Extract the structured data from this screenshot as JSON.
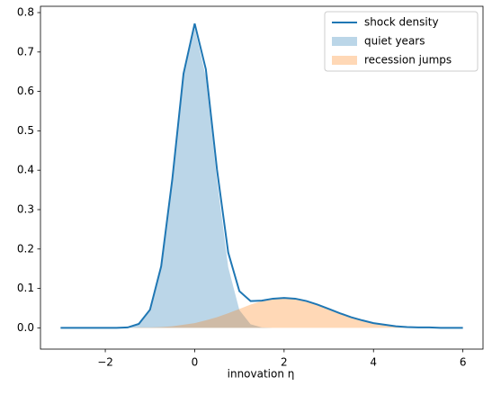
{
  "chart_data": {
    "type": "line",
    "xlabel": "innovation η",
    "x": [
      -3,
      -2.75,
      -2.5,
      -2.25,
      -2,
      -1.75,
      -1.5,
      -1.25,
      -1,
      -0.75,
      -0.5,
      -0.25,
      0,
      0.25,
      0.5,
      0.75,
      1,
      1.25,
      1.5,
      1.75,
      2,
      2.25,
      2.5,
      2.75,
      3,
      3.25,
      3.5,
      3.75,
      4,
      4.25,
      4.5,
      4.75,
      5,
      5.25,
      5.5,
      5.75,
      6
    ],
    "series": [
      {
        "name": "shock density",
        "kind": "line",
        "color": "#1f77b4",
        "values": [
          0,
          0,
          0,
          0,
          0,
          0,
          0.001,
          0.01,
          0.046,
          0.156,
          0.378,
          0.645,
          0.772,
          0.656,
          0.401,
          0.191,
          0.093,
          0.068,
          0.069,
          0.074,
          0.076,
          0.074,
          0.068,
          0.059,
          0.048,
          0.037,
          0.027,
          0.019,
          0.012,
          0.008,
          0.004,
          0.002,
          0.001,
          0.001,
          0,
          0,
          0
        ]
      },
      {
        "name": "quiet years",
        "kind": "area",
        "color": "#1f77b4",
        "values": [
          0,
          0,
          0,
          0,
          0,
          0,
          0.001,
          0.009,
          0.045,
          0.154,
          0.374,
          0.637,
          0.76,
          0.637,
          0.374,
          0.154,
          0.045,
          0.009,
          0.001,
          0,
          0,
          0,
          0,
          0,
          0,
          0,
          0,
          0,
          0,
          0,
          0,
          0,
          0,
          0,
          0,
          0,
          0
        ]
      },
      {
        "name": "recession jumps",
        "kind": "area",
        "color": "#ff7f0e",
        "values": [
          0,
          0,
          0,
          0,
          0,
          0,
          0,
          0.001,
          0.001,
          0.002,
          0.004,
          0.008,
          0.012,
          0.019,
          0.027,
          0.037,
          0.048,
          0.059,
          0.068,
          0.074,
          0.076,
          0.074,
          0.068,
          0.059,
          0.048,
          0.037,
          0.027,
          0.019,
          0.012,
          0.008,
          0.004,
          0.002,
          0.001,
          0.001,
          0,
          0,
          0
        ]
      }
    ],
    "xlim": [
      -3.45,
      6.45
    ],
    "ylim": [
      -0.054,
      0.816
    ],
    "xticks": [
      {
        "value": -2,
        "label": "−2"
      },
      0,
      2,
      4,
      6
    ],
    "yticks": [
      {
        "value": 0,
        "label": "0.0"
      },
      0.1,
      0.2,
      0.3,
      0.4,
      0.5,
      0.6,
      0.7,
      0.8
    ],
    "legend": "upper right"
  }
}
